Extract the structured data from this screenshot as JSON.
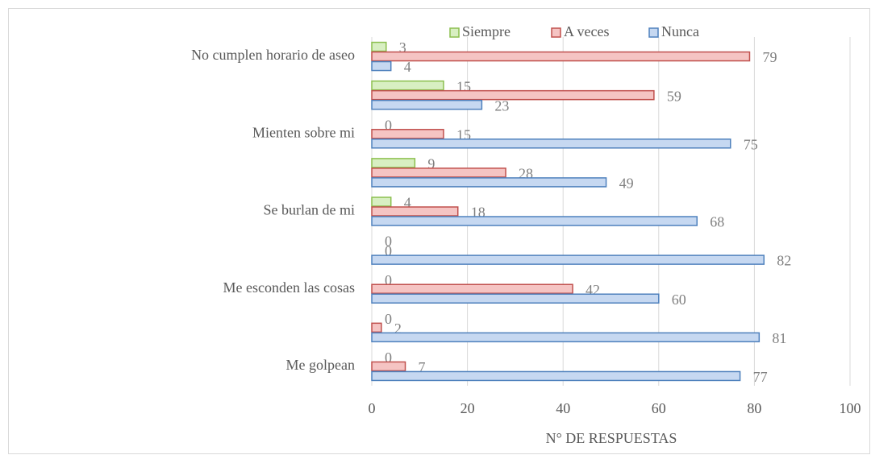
{
  "chart_data": {
    "type": "hbar",
    "xlabel": "N° DE RESPUESTAS",
    "categories": [
      "Me golpean",
      null,
      "Me esconden las cosas",
      null,
      "Se burlan de mi",
      null,
      "Mienten sobre mi",
      null,
      "No cumplen horario de aseo"
    ],
    "series": [
      {
        "name": "Siempre",
        "color": "#d8efc2",
        "stroke": "#8cbf4f",
        "values": [
          0,
          0,
          0,
          0,
          4,
          9,
          0,
          15,
          3
        ]
      },
      {
        "name": "A veces",
        "color": "#f5c4c3",
        "stroke": "#c0504d",
        "values": [
          7,
          2,
          42,
          0,
          18,
          28,
          15,
          59,
          79
        ]
      },
      {
        "name": "Nunca",
        "color": "#c6d8f1",
        "stroke": "#4f81bd",
        "values": [
          77,
          81,
          60,
          82,
          68,
          49,
          75,
          23,
          4
        ]
      }
    ],
    "xlim": [
      0,
      100
    ],
    "xticks": [
      0,
      20,
      40,
      60,
      80,
      100
    ],
    "grid": true,
    "legend": "top"
  }
}
